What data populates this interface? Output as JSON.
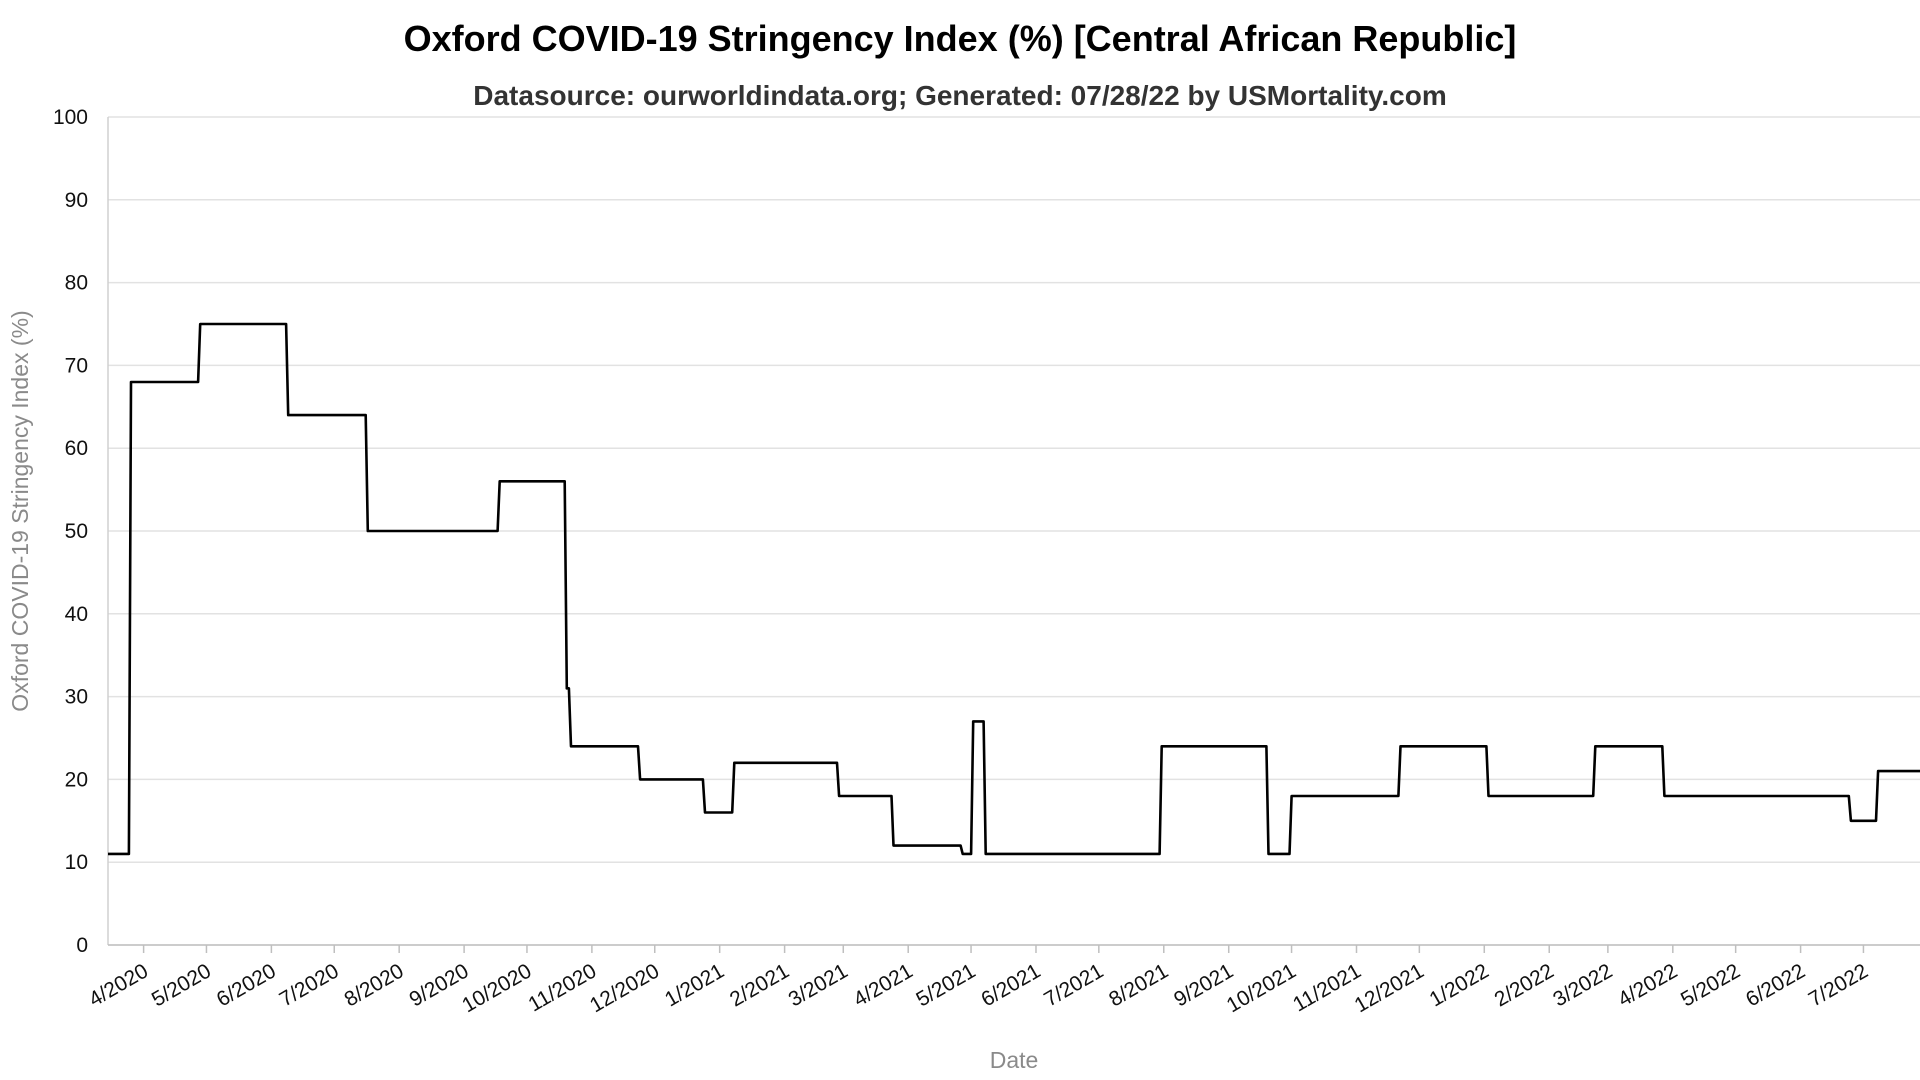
{
  "chart_data": {
    "type": "line",
    "title": "Oxford COVID-19 Stringency Index (%) [Central African Republic]",
    "subtitle": "Datasource: ourworldindata.org; Generated: 07/28/22 by USMortality.com",
    "xlabel": "Date",
    "ylabel": "Oxford COVID-19 Stringency Index (%)",
    "ylim": [
      0,
      100
    ],
    "yticks": [
      0,
      10,
      20,
      30,
      40,
      50,
      60,
      70,
      80,
      90,
      100
    ],
    "xticks": [
      "4/2020",
      "5/2020",
      "6/2020",
      "7/2020",
      "8/2020",
      "9/2020",
      "10/2020",
      "11/2020",
      "12/2020",
      "1/2021",
      "2/2021",
      "3/2021",
      "4/2021",
      "5/2021",
      "6/2021",
      "7/2021",
      "8/2021",
      "9/2021",
      "10/2021",
      "11/2021",
      "12/2021",
      "1/2022",
      "2/2022",
      "3/2022",
      "4/2022",
      "5/2022",
      "6/2022",
      "7/2022"
    ],
    "grid": true,
    "line_color": "#000000",
    "series": [
      {
        "x": [
          "2020-03-15",
          "2020-03-25",
          "2020-03-26",
          "2020-04-27",
          "2020-04-28",
          "2020-06-08",
          "2020-06-09",
          "2020-07-16",
          "2020-07-17",
          "2020-09-17",
          "2020-09-18",
          "2020-10-19",
          "2020-10-20",
          "2020-10-21",
          "2020-10-22",
          "2020-11-23",
          "2020-11-24",
          "2020-12-24",
          "2020-12-25",
          "2021-01-07",
          "2021-01-08",
          "2021-02-26",
          "2021-02-27",
          "2021-03-24",
          "2021-03-25",
          "2021-04-26",
          "2021-04-27",
          "2021-05-01",
          "2021-05-02",
          "2021-05-07",
          "2021-05-08",
          "2021-07-30",
          "2021-07-31",
          "2021-09-19",
          "2021-09-20",
          "2021-09-30",
          "2021-10-01",
          "2021-11-21",
          "2021-11-22",
          "2022-01-02",
          "2022-01-03",
          "2022-02-22",
          "2022-02-23",
          "2022-03-27",
          "2022-03-28",
          "2022-06-24",
          "2022-06-25",
          "2022-07-07",
          "2022-07-08",
          "2022-07-28"
        ],
        "values": [
          11,
          11,
          68,
          68,
          75,
          75,
          64,
          64,
          50,
          50,
          56,
          56,
          31,
          31,
          24,
          24,
          20,
          20,
          16,
          16,
          22,
          22,
          18,
          18,
          12,
          12,
          11,
          11,
          27,
          27,
          11,
          11,
          24,
          24,
          11,
          11,
          18,
          18,
          24,
          24,
          18,
          18,
          24,
          24,
          18,
          18,
          15,
          15,
          21,
          21
        ]
      }
    ]
  }
}
